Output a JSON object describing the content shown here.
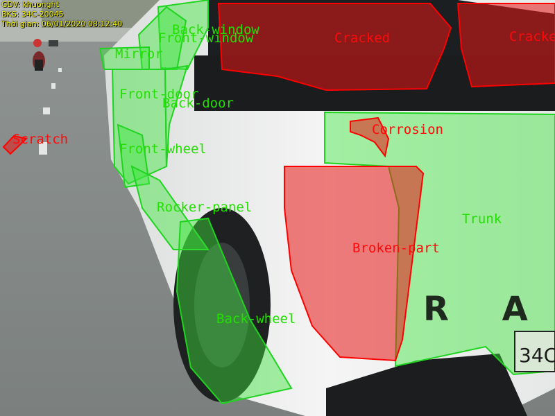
{
  "hud": {
    "line1": "GDV: khuonght",
    "line2": "BKS: 34C-20045",
    "line3": "Thời gian: 06/01/2020 08:12:40"
  },
  "labels": {
    "back_window": "Back-window",
    "front_window": "Front-window",
    "mirror": "Mirror",
    "front_door": "Front-door",
    "back_door": "Back-door",
    "front_wheel": "Front-wheel",
    "rocker_panel": "Rocker-panel",
    "back_wheel": "Back-wheel",
    "trunk": "Trunk",
    "scratch": "Scratch",
    "corrosion": "Corrosion",
    "broken_part": "Broken-part",
    "cracked_1": "Cracked",
    "cracked_2": "Cracked"
  },
  "vehicle_text": {
    "tailgate_letters": "R A",
    "plate_fragment": "34C"
  },
  "colors": {
    "part_mask": "#3de63d",
    "damage_mask": "#e81515",
    "hud_text": "#f2f200"
  }
}
